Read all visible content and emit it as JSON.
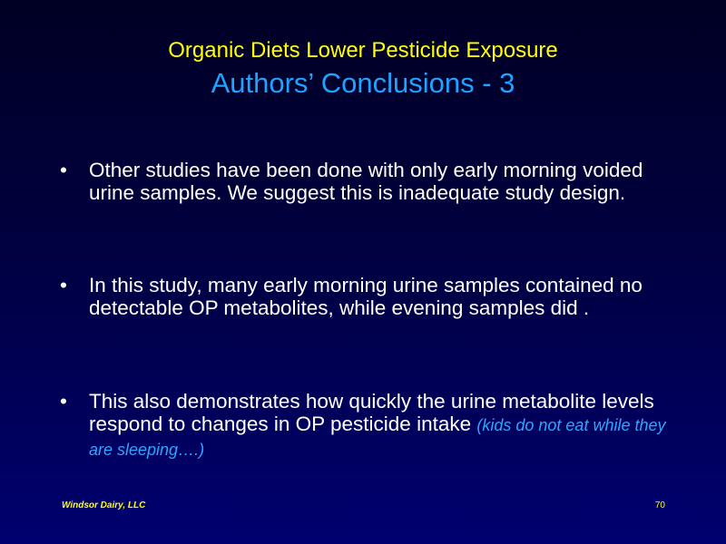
{
  "slide": {
    "title": "Organic Diets Lower Pesticide Exposure",
    "subtitle": "Authors’ Conclusions - 3",
    "bullet_symbol": "•",
    "bullets": [
      {
        "text": "Other studies have been done with only early morning voided urine samples. We suggest this is inadequate study design."
      },
      {
        "text": "In this study, many early morning urine samples contained no detectable OP metabolites, while evening samples did ."
      },
      {
        "text": "This also demonstrates how quickly the urine metabolite levels respond to changes in OP pesticide intake",
        "note": "(kids do not eat while they are sleeping….)"
      }
    ],
    "footer": {
      "left": "Windsor Dairy, LLC",
      "page_number": "70"
    },
    "colors": {
      "title": "#ffff00",
      "subtitle": "#1fa3ff",
      "body_text": "#ffffff",
      "note": "#2aa8ff",
      "background_top": "#000024",
      "background_bottom": "#000070"
    }
  }
}
